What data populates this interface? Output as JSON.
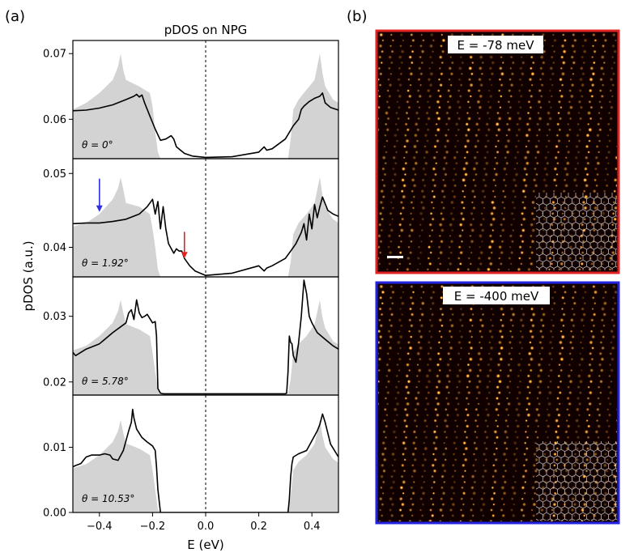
{
  "panel_a_label": "(a)",
  "panel_b_label": "(b)",
  "chart_data": [
    {
      "type": "line",
      "title": "pDOS on NPG",
      "xlabel": "E (eV)",
      "ylabel": "pDOS (a.u.)",
      "xlim": [
        -0.5,
        0.5
      ],
      "xticks": [
        -0.4,
        -0.2,
        0.0,
        0.2,
        0.4
      ],
      "xtick_labels": [
        "−0.4",
        "−0.2",
        "0.0",
        "0.2",
        "0.4"
      ],
      "zero_line": true,
      "subplots": [
        {
          "annotation": "θ = 0°",
          "ylim": [
            0.054,
            0.072
          ],
          "yticks": [
            0.06,
            0.07
          ],
          "ytick_labels": [
            "0.06",
            "0.07"
          ],
          "series": [
            {
              "style": "filled-gray",
              "x": [
                -0.5,
                -0.45,
                -0.4,
                -0.35,
                -0.33,
                -0.32,
                -0.31,
                -0.3,
                -0.25,
                -0.21,
                -0.2,
                -0.19,
                -0.18,
                -0.17,
                0.31,
                0.32,
                0.33,
                0.35,
                0.38,
                0.41,
                0.43,
                0.44,
                0.45,
                0.48,
                0.5
              ],
              "y": [
                0.0615,
                0.0625,
                0.064,
                0.066,
                0.068,
                0.07,
                0.0675,
                0.066,
                0.065,
                0.064,
                0.062,
                0.058,
                0.055,
                0.054,
                0.054,
                0.057,
                0.0615,
                0.063,
                0.0645,
                0.066,
                0.07,
                0.067,
                0.065,
                0.063,
                0.0625
              ]
            },
            {
              "style": "line-black",
              "x": [
                -0.5,
                -0.45,
                -0.4,
                -0.35,
                -0.3,
                -0.27,
                -0.26,
                -0.25,
                -0.24,
                -0.23,
                -0.21,
                -0.19,
                -0.17,
                -0.15,
                -0.13,
                -0.12,
                -0.11,
                -0.08,
                -0.05,
                0.0,
                0.1,
                0.2,
                0.22,
                0.23,
                0.25,
                0.3,
                0.33,
                0.35,
                0.36,
                0.37,
                0.39,
                0.41,
                0.43,
                0.44,
                0.45,
                0.47,
                0.5
              ],
              "y": [
                0.0613,
                0.0614,
                0.0617,
                0.0622,
                0.063,
                0.0635,
                0.0638,
                0.0634,
                0.0637,
                0.0625,
                0.0605,
                0.0585,
                0.0568,
                0.057,
                0.0575,
                0.057,
                0.0558,
                0.0548,
                0.0544,
                0.0542,
                0.0543,
                0.055,
                0.0558,
                0.0553,
                0.0555,
                0.057,
                0.059,
                0.06,
                0.0615,
                0.062,
                0.0627,
                0.0632,
                0.0635,
                0.064,
                0.0625,
                0.0618,
                0.0614
              ]
            }
          ]
        },
        {
          "annotation": "θ = 1.92°",
          "ylim": [
            0.036,
            0.052
          ],
          "yticks": [
            0.04,
            0.05
          ],
          "ytick_labels": [
            "0.04",
            "0.05"
          ],
          "series": [
            {
              "style": "filled-gray",
              "x": [
                -0.5,
                -0.45,
                -0.4,
                -0.35,
                -0.33,
                -0.32,
                -0.31,
                -0.3,
                -0.25,
                -0.21,
                -0.2,
                -0.19,
                -0.18,
                -0.17,
                0.31,
                0.32,
                0.33,
                0.35,
                0.38,
                0.41,
                0.43,
                0.44,
                0.45,
                0.48,
                0.5
              ],
              "y": [
                0.0428,
                0.0433,
                0.0445,
                0.0465,
                0.048,
                0.0495,
                0.0478,
                0.046,
                0.0455,
                0.0445,
                0.0425,
                0.04,
                0.037,
                0.036,
                0.036,
                0.038,
                0.0418,
                0.0433,
                0.0445,
                0.046,
                0.0495,
                0.047,
                0.0455,
                0.0438,
                0.0433
              ]
            },
            {
              "style": "line-black",
              "x": [
                -0.5,
                -0.45,
                -0.4,
                -0.35,
                -0.3,
                -0.25,
                -0.22,
                -0.2,
                -0.19,
                -0.18,
                -0.17,
                -0.16,
                -0.15,
                -0.14,
                -0.12,
                -0.11,
                -0.1,
                -0.09,
                -0.08,
                -0.06,
                -0.04,
                0.0,
                0.1,
                0.2,
                0.22,
                0.23,
                0.25,
                0.3,
                0.32,
                0.34,
                0.36,
                0.37,
                0.38,
                0.39,
                0.4,
                0.41,
                0.42,
                0.43,
                0.44,
                0.46,
                0.48,
                0.5
              ],
              "y": [
                0.0432,
                0.0433,
                0.0433,
                0.0435,
                0.0438,
                0.0445,
                0.0455,
                0.0465,
                0.0445,
                0.0462,
                0.0425,
                0.0455,
                0.0425,
                0.0405,
                0.0392,
                0.0398,
                0.0395,
                0.0395,
                0.0385,
                0.0375,
                0.0368,
                0.0362,
                0.0365,
                0.0375,
                0.0368,
                0.0372,
                0.0375,
                0.0385,
                0.0395,
                0.0405,
                0.042,
                0.0432,
                0.041,
                0.0445,
                0.0425,
                0.0458,
                0.044,
                0.0455,
                0.0468,
                0.045,
                0.0445,
                0.0442
              ]
            }
          ],
          "arrows": [
            {
              "color": "#2f2fe0",
              "x": -0.4,
              "y_from": 0.0493,
              "y_to": 0.0448
            },
            {
              "color": "#e02424",
              "x": -0.08,
              "y_from": 0.0421,
              "y_to": 0.0385
            }
          ]
        },
        {
          "annotation": "θ = 5.78°",
          "ylim": [
            0.018,
            0.036
          ],
          "yticks": [
            0.02,
            0.03
          ],
          "ytick_labels": [
            "0.02",
            "0.03"
          ],
          "series": [
            {
              "style": "filled-gray",
              "x": [
                -0.5,
                -0.45,
                -0.4,
                -0.35,
                -0.33,
                -0.32,
                -0.31,
                -0.3,
                -0.25,
                -0.21,
                -0.2,
                -0.19,
                -0.18,
                -0.17,
                0.31,
                0.32,
                0.33,
                0.35,
                0.38,
                0.41,
                0.43,
                0.44,
                0.45,
                0.48,
                0.5
              ],
              "y": [
                0.0248,
                0.0255,
                0.027,
                0.029,
                0.0308,
                0.0325,
                0.0305,
                0.0288,
                0.028,
                0.027,
                0.0245,
                0.0215,
                0.019,
                0.0182,
                0.0182,
                0.0205,
                0.0245,
                0.0258,
                0.027,
                0.0288,
                0.0325,
                0.0298,
                0.0282,
                0.0262,
                0.0257
              ]
            },
            {
              "style": "line-black",
              "x": [
                -0.5,
                -0.49,
                -0.45,
                -0.4,
                -0.35,
                -0.3,
                -0.29,
                -0.28,
                -0.27,
                -0.26,
                -0.25,
                -0.24,
                -0.23,
                -0.22,
                -0.2,
                -0.19,
                -0.185,
                -0.18,
                -0.17,
                -0.16,
                0.0,
                0.3,
                0.305,
                0.31,
                0.315,
                0.32,
                0.325,
                0.33,
                0.34,
                0.35,
                0.36,
                0.37,
                0.38,
                0.39,
                0.4,
                0.42,
                0.45,
                0.48,
                0.5
              ],
              "y": [
                0.0245,
                0.024,
                0.025,
                0.0258,
                0.0275,
                0.029,
                0.0305,
                0.031,
                0.0295,
                0.0325,
                0.0305,
                0.0298,
                0.03,
                0.0303,
                0.029,
                0.0292,
                0.027,
                0.019,
                0.0183,
                0.0182,
                0.0182,
                0.0182,
                0.0183,
                0.0215,
                0.027,
                0.026,
                0.0258,
                0.024,
                0.023,
                0.026,
                0.03,
                0.0355,
                0.0335,
                0.03,
                0.029,
                0.0275,
                0.0265,
                0.0255,
                0.025
              ]
            }
          ]
        },
        {
          "annotation": "θ = 10.53°",
          "ylim": [
            0.0,
            0.018
          ],
          "yticks": [
            0.0,
            0.01
          ],
          "ytick_labels": [
            "0.00",
            "0.01"
          ],
          "series": [
            {
              "style": "filled-gray",
              "x": [
                -0.5,
                -0.45,
                -0.4,
                -0.35,
                -0.33,
                -0.32,
                -0.31,
                -0.3,
                -0.25,
                -0.21,
                -0.2,
                -0.19,
                -0.18,
                -0.17,
                0.31,
                0.32,
                0.33,
                0.35,
                0.38,
                0.41,
                0.43,
                0.44,
                0.45,
                0.48,
                0.5
              ],
              "y": [
                0.0068,
                0.0074,
                0.0088,
                0.0108,
                0.0125,
                0.0142,
                0.0122,
                0.0106,
                0.0098,
                0.0088,
                0.0065,
                0.0035,
                0.0005,
                0.0,
                0.0,
                0.0025,
                0.0065,
                0.0078,
                0.0088,
                0.0105,
                0.0142,
                0.0118,
                0.01,
                0.0082,
                0.0076
              ]
            },
            {
              "style": "line-black",
              "x": [
                -0.5,
                -0.49,
                -0.47,
                -0.45,
                -0.43,
                -0.4,
                -0.38,
                -0.36,
                -0.35,
                -0.33,
                -0.31,
                -0.3,
                -0.29,
                -0.28,
                -0.275,
                -0.27,
                -0.26,
                -0.24,
                -0.22,
                -0.2,
                -0.19,
                -0.185,
                -0.18,
                -0.17,
                0.0,
                0.31,
                0.315,
                0.32,
                0.325,
                0.33,
                0.35,
                0.38,
                0.4,
                0.42,
                0.43,
                0.44,
                0.45,
                0.47,
                0.5
              ],
              "y": [
                0.007,
                0.0072,
                0.0075,
                0.0085,
                0.0088,
                0.0088,
                0.009,
                0.0088,
                0.0082,
                0.008,
                0.0095,
                0.011,
                0.0125,
                0.0138,
                0.0158,
                0.0145,
                0.0128,
                0.0115,
                0.0108,
                0.0102,
                0.0095,
                0.007,
                0.0035,
                0.0,
                0.0,
                0.0,
                0.002,
                0.0055,
                0.0075,
                0.0085,
                0.009,
                0.0095,
                0.011,
                0.0125,
                0.0135,
                0.0151,
                0.0138,
                0.0105,
                0.0085
              ]
            }
          ]
        }
      ]
    }
  ],
  "images": [
    {
      "label": "E = -78 meV",
      "border_color": "#e02424",
      "scale_bar": true
    },
    {
      "label": "E = -400 meV",
      "border_color": "#2424e0",
      "scale_bar": false
    }
  ],
  "colors": {
    "fill": "#d3d3d3",
    "line": "#000000",
    "stm_background": "#100000",
    "stm_bright": "#ffcc44"
  }
}
